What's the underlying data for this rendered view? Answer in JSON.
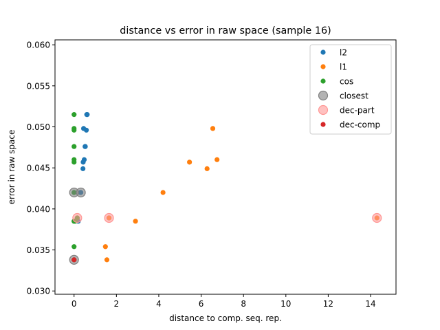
{
  "chart_data": {
    "type": "scatter",
    "title": "distance vs error in raw space (sample 16)",
    "xlabel": "distance to comp. seq. rep.",
    "ylabel": "error in raw space",
    "xlim": [
      -0.9,
      15.2
    ],
    "ylim": [
      0.0296,
      0.0606
    ],
    "xticks": [
      0,
      2,
      4,
      6,
      8,
      10,
      12,
      14
    ],
    "xtick_labels": [
      "0",
      "2",
      "4",
      "6",
      "8",
      "10",
      "12",
      "14"
    ],
    "yticks": [
      0.03,
      0.035,
      0.04,
      0.045,
      0.05,
      0.055,
      0.06
    ],
    "ytick_labels": [
      "0.030",
      "0.035",
      "0.040",
      "0.045",
      "0.050",
      "0.055",
      "0.060"
    ],
    "grid": false,
    "legend_position": "top-right",
    "series": [
      {
        "name": "l2",
        "color": "#1f77b4",
        "marker": "dot",
        "x": [
          0.6,
          0.62,
          0.45,
          0.58,
          0.52,
          0.53,
          0.48,
          0.43,
          0.42,
          0.3,
          0.32,
          0.2,
          1.65,
          0.0
        ],
        "y": [
          0.0515,
          0.0515,
          0.0498,
          0.0496,
          0.0476,
          0.0476,
          0.046,
          0.0457,
          0.0449,
          0.042,
          0.042,
          0.0385,
          0.0389,
          0.0338
        ]
      },
      {
        "name": "l1",
        "color": "#ff7f0e",
        "marker": "dot",
        "x": [
          6.55,
          6.75,
          5.45,
          6.28,
          4.2,
          0.15,
          1.65,
          2.9,
          14.3,
          1.48,
          1.55
        ],
        "y": [
          0.0498,
          0.046,
          0.0457,
          0.0449,
          0.042,
          0.0389,
          0.0389,
          0.0385,
          0.0389,
          0.0354,
          0.0338
        ]
      },
      {
        "name": "cos",
        "color": "#2ca02c",
        "marker": "dot",
        "x": [
          0.0,
          0.0,
          0.0,
          0.0,
          0.0,
          0.0,
          0.0,
          0.0,
          0.0,
          0.0,
          0.05,
          0.15,
          0.0,
          0.0
        ],
        "y": [
          0.0515,
          0.0498,
          0.0496,
          0.0476,
          0.046,
          0.0457,
          0.042,
          0.042,
          0.0385,
          0.0385,
          0.0385,
          0.0389,
          0.0354,
          0.0338
        ]
      },
      {
        "name": "closest",
        "color": "#808080",
        "marker": "big-ring",
        "x": [
          0.0,
          0.32,
          0.0
        ],
        "y": [
          0.042,
          0.042,
          0.0338
        ]
      },
      {
        "name": "dec-part",
        "color": "#ff9896",
        "marker": "big-ring",
        "x": [
          0.15,
          1.65,
          14.3
        ],
        "y": [
          0.0389,
          0.0389,
          0.0389
        ]
      },
      {
        "name": "dec-comp",
        "color": "#d62728",
        "marker": "dot",
        "x": [
          0.0
        ],
        "y": [
          0.0338
        ]
      }
    ]
  }
}
